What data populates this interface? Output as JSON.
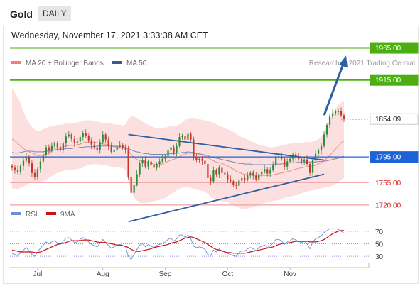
{
  "header": {
    "title": "Gold",
    "period": "DAILY",
    "timestamp": "Wednesday, November 17, 2021 3:33:38 AM CET"
  },
  "legend": {
    "ma20_label": "MA 20 + Bollinger Bands",
    "ma50_label": "MA 50",
    "copyright": "Research © 2021 Trading Central",
    "colors": {
      "ma20": "#f08080",
      "ma50": "#3b5998"
    }
  },
  "rsi_legend": {
    "rsi_label": "RSI",
    "ma9_label": "9MA",
    "colors": {
      "rsi": "#6b8fd6",
      "ma9": "#cc1111"
    }
  },
  "chart_data": [
    {
      "type": "candlestick",
      "title": "Gold",
      "timeframe": "DAILY",
      "x_ticks": [
        "Jul",
        "Aug",
        "Sep",
        "Oct",
        "Nov"
      ],
      "ylim": [
        1680,
        1980
      ],
      "grid": false,
      "last_price": 1854.09,
      "levels": [
        {
          "value": 1965.0,
          "label": "1965.00",
          "kind": "resistance",
          "color": "#4caf10"
        },
        {
          "value": 1915.0,
          "label": "1915.00",
          "kind": "resistance",
          "color": "#4caf10"
        },
        {
          "value": 1854.09,
          "label": "1854.09",
          "kind": "last",
          "color": "#222222"
        },
        {
          "value": 1795.0,
          "label": "1795.00",
          "kind": "pivot",
          "color": "#1e62d8"
        },
        {
          "value": 1755.0,
          "label": "1755.00",
          "kind": "support",
          "color": "#dd2222"
        },
        {
          "value": 1720.0,
          "label": "1720.00",
          "kind": "support",
          "color": "#dd2222"
        }
      ],
      "closes": [
        1778,
        1775,
        1771,
        1781,
        1789,
        1795,
        1785,
        1770,
        1763,
        1776,
        1788,
        1798,
        1810,
        1805,
        1812,
        1816,
        1810,
        1806,
        1816,
        1827,
        1830,
        1823,
        1817,
        1819,
        1826,
        1832,
        1828,
        1821,
        1813,
        1810,
        1806,
        1818,
        1830,
        1822,
        1812,
        1803,
        1806,
        1811,
        1814,
        1810,
        1806,
        1763,
        1739,
        1752,
        1768,
        1785,
        1790,
        1780,
        1788,
        1782,
        1778,
        1784,
        1788,
        1792,
        1796,
        1805,
        1810,
        1802,
        1812,
        1826,
        1828,
        1822,
        1831,
        1822,
        1795,
        1790,
        1792,
        1789,
        1784,
        1762,
        1757,
        1774,
        1768,
        1778,
        1770,
        1768,
        1760,
        1757,
        1752,
        1750,
        1758,
        1762,
        1760,
        1766,
        1770,
        1766,
        1760,
        1768,
        1772,
        1776,
        1769,
        1774,
        1782,
        1795,
        1796,
        1792,
        1780,
        1788,
        1792,
        1799,
        1795,
        1792,
        1788,
        1791,
        1784,
        1770,
        1790,
        1800,
        1805,
        1812,
        1830,
        1845,
        1858,
        1863,
        1866,
        1866,
        1860,
        1854
      ],
      "ma20": [
        1823,
        1820,
        1816,
        1812,
        1808,
        1805,
        1803,
        1801,
        1799,
        1797,
        1797,
        1798,
        1800,
        1802,
        1804,
        1806,
        1808,
        1810,
        1811,
        1812,
        1813,
        1813,
        1813,
        1814,
        1815,
        1817,
        1818,
        1818,
        1818,
        1818,
        1817,
        1816,
        1815,
        1815,
        1814,
        1813,
        1812,
        1812,
        1811,
        1811,
        1810,
        1805,
        1799,
        1794,
        1791,
        1789,
        1788,
        1787,
        1786,
        1785,
        1784,
        1783,
        1783,
        1784,
        1786,
        1788,
        1790,
        1791,
        1793,
        1795,
        1798,
        1799,
        1801,
        1801,
        1800,
        1800,
        1799,
        1798,
        1797,
        1794,
        1791,
        1789,
        1787,
        1786,
        1785,
        1783,
        1781,
        1778,
        1776,
        1773,
        1771,
        1769,
        1768,
        1767,
        1767,
        1766,
        1765,
        1765,
        1766,
        1766,
        1766,
        1766,
        1767,
        1768,
        1769,
        1770,
        1771,
        1772,
        1773,
        1775,
        1776,
        1777,
        1778,
        1779,
        1780,
        1780,
        1781,
        1782,
        1784,
        1786,
        1789,
        1793,
        1797,
        1802,
        1807,
        1812,
        1817,
        1820
      ],
      "bb_upper": [
        1902,
        1895,
        1888,
        1878,
        1866,
        1855,
        1848,
        1842,
        1838,
        1835,
        1836,
        1838,
        1840,
        1842,
        1843,
        1844,
        1845,
        1845,
        1846,
        1847,
        1848,
        1848,
        1848,
        1849,
        1850,
        1851,
        1852,
        1852,
        1852,
        1851,
        1850,
        1849,
        1848,
        1848,
        1847,
        1847,
        1846,
        1845,
        1845,
        1844,
        1846,
        1854,
        1858,
        1858,
        1856,
        1853,
        1850,
        1847,
        1845,
        1843,
        1841,
        1840,
        1840,
        1840,
        1841,
        1842,
        1843,
        1843,
        1844,
        1846,
        1849,
        1852,
        1855,
        1856,
        1856,
        1855,
        1854,
        1853,
        1852,
        1851,
        1850,
        1848,
        1846,
        1844,
        1842,
        1840,
        1838,
        1836,
        1834,
        1831,
        1828,
        1826,
        1824,
        1822,
        1820,
        1818,
        1816,
        1814,
        1813,
        1812,
        1811,
        1810,
        1810,
        1811,
        1812,
        1813,
        1814,
        1815,
        1816,
        1816,
        1817,
        1817,
        1817,
        1818,
        1818,
        1818,
        1819,
        1820,
        1823,
        1827,
        1833,
        1842,
        1852,
        1862,
        1870,
        1876,
        1880,
        1882
      ],
      "bb_lower": [
        1745,
        1746,
        1745,
        1747,
        1749,
        1752,
        1754,
        1755,
        1756,
        1756,
        1756,
        1757,
        1759,
        1762,
        1765,
        1768,
        1770,
        1772,
        1773,
        1774,
        1775,
        1775,
        1775,
        1776,
        1777,
        1779,
        1781,
        1782,
        1783,
        1784,
        1784,
        1783,
        1783,
        1782,
        1781,
        1780,
        1779,
        1779,
        1778,
        1778,
        1774,
        1758,
        1742,
        1732,
        1727,
        1724,
        1723,
        1723,
        1724,
        1725,
        1726,
        1727,
        1728,
        1729,
        1731,
        1734,
        1737,
        1740,
        1743,
        1745,
        1747,
        1748,
        1748,
        1747,
        1745,
        1744,
        1743,
        1742,
        1741,
        1737,
        1733,
        1730,
        1728,
        1727,
        1726,
        1725,
        1724,
        1722,
        1720,
        1717,
        1716,
        1714,
        1714,
        1714,
        1716,
        1717,
        1718,
        1720,
        1722,
        1723,
        1724,
        1725,
        1726,
        1727,
        1728,
        1729,
        1731,
        1732,
        1733,
        1734,
        1735,
        1736,
        1738,
        1740,
        1741,
        1742,
        1743,
        1744,
        1745,
        1746,
        1747,
        1748,
        1749,
        1751,
        1753,
        1756,
        1759,
        1762
      ],
      "ma50": [
        1802,
        1801,
        1801,
        1802,
        1803,
        1804,
        1804,
        1804,
        1803,
        1803,
        1803,
        1803,
        1804,
        1804,
        1805,
        1806,
        1806,
        1807,
        1807,
        1808,
        1808,
        1808,
        1809,
        1809,
        1810,
        1810,
        1811,
        1811,
        1811,
        1811,
        1812,
        1812,
        1812,
        1812,
        1812,
        1812,
        1811,
        1811,
        1811,
        1810,
        1809,
        1808,
        1806,
        1804,
        1803,
        1802,
        1801,
        1800,
        1800,
        1799,
        1799,
        1799,
        1799,
        1799,
        1799,
        1800,
        1800,
        1800,
        1801,
        1801,
        1802,
        1802,
        1803,
        1802,
        1802,
        1801,
        1800,
        1799,
        1798,
        1797,
        1795,
        1794,
        1793,
        1792,
        1791,
        1790,
        1789,
        1788,
        1787,
        1786,
        1785,
        1785,
        1784,
        1784,
        1784,
        1783,
        1783,
        1783,
        1783,
        1783,
        1783,
        1783,
        1783,
        1784,
        1784,
        1784,
        1785,
        1785,
        1786,
        1786,
        1786,
        1787,
        1787,
        1787,
        1787,
        1787,
        1787,
        1787,
        1788,
        1788,
        1788,
        1789,
        1790,
        1791,
        1792,
        1793,
        1794,
        1796
      ],
      "trendlines": [
        {
          "name": "descending resistance",
          "points": [
            [
              41,
              1830
            ],
            [
              110,
              1790
            ]
          ]
        },
        {
          "name": "ascending support",
          "points": [
            [
              41,
              1694
            ],
            [
              110,
              1768
            ]
          ]
        },
        {
          "name": "projection",
          "points": [
            [
              110,
              1860
            ],
            [
              117,
              1943
            ]
          ]
        }
      ]
    },
    {
      "type": "line",
      "title": "RSI",
      "ylim": [
        20,
        80
      ],
      "yticks": [
        30,
        50,
        70
      ],
      "series": [
        {
          "name": "RSI",
          "values": [
            34,
            33,
            31,
            36,
            40,
            44,
            39,
            33,
            30,
            37,
            43,
            48,
            53,
            50,
            53,
            55,
            51,
            49,
            54,
            59,
            60,
            56,
            52,
            53,
            57,
            60,
            57,
            53,
            49,
            47,
            45,
            51,
            57,
            52,
            47,
            43,
            45,
            48,
            49,
            47,
            45,
            30,
            25,
            33,
            41,
            48,
            50,
            45,
            49,
            46,
            44,
            47,
            49,
            51,
            53,
            57,
            59,
            54,
            58,
            64,
            64,
            60,
            64,
            58,
            46,
            44,
            45,
            44,
            41,
            33,
            31,
            40,
            37,
            42,
            38,
            37,
            34,
            33,
            31,
            30,
            36,
            39,
            38,
            42,
            44,
            42,
            39,
            44,
            46,
            48,
            44,
            47,
            51,
            57,
            57,
            55,
            49,
            53,
            55,
            58,
            56,
            54,
            52,
            54,
            50,
            42,
            53,
            58,
            60,
            63,
            68,
            71,
            74,
            74,
            74,
            73,
            70,
            67
          ]
        },
        {
          "name": "9MA",
          "values": [
            40,
            39,
            38,
            37,
            37,
            37,
            37,
            37,
            36,
            36,
            37,
            39,
            41,
            43,
            45,
            47,
            49,
            50,
            51,
            52,
            54,
            55,
            55,
            55,
            55,
            56,
            56,
            56,
            55,
            54,
            53,
            52,
            52,
            52,
            51,
            50,
            49,
            48,
            48,
            47,
            46,
            44,
            41,
            39,
            38,
            38,
            39,
            40,
            41,
            42,
            44,
            45,
            46,
            47,
            48,
            49,
            51,
            52,
            53,
            55,
            57,
            59,
            60,
            61,
            60,
            58,
            56,
            54,
            52,
            49,
            46,
            43,
            41,
            40,
            39,
            37,
            36,
            36,
            35,
            35,
            35,
            35,
            35,
            36,
            37,
            38,
            39,
            40,
            41,
            42,
            43,
            44,
            45,
            47,
            49,
            50,
            51,
            51,
            52,
            53,
            54,
            54,
            54,
            54,
            54,
            53,
            53,
            53,
            54,
            55,
            57,
            60,
            63,
            66,
            68,
            70,
            71,
            71
          ]
        }
      ]
    }
  ]
}
